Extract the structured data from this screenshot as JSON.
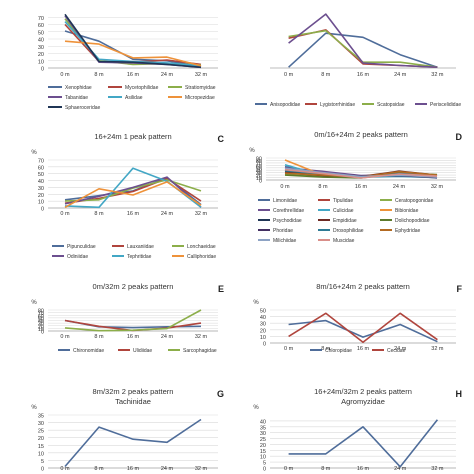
{
  "figure": {
    "gridColor": "#d9d9d9",
    "axisColor": "#a6a6a6",
    "textColor": "#333333"
  },
  "chart_data": [
    {
      "type": "line",
      "letter": "",
      "title": "",
      "ylabel": "",
      "categories": [
        "0 m",
        "8 m",
        "16 m",
        "24 m",
        "32 m"
      ],
      "ylim": [
        0,
        80
      ],
      "yticks": [
        0,
        10,
        20,
        30,
        40,
        50,
        60,
        70
      ],
      "show_yticks": true,
      "legend_rows": [
        [
          "Xenophidae",
          "Mycetophilidae",
          "Stratiomyidae"
        ],
        [
          "Tabanidae",
          "Asilidae",
          "Micropezidae"
        ],
        [
          "Sphaeroceridae"
        ]
      ],
      "series": [
        {
          "name": "Xenophidae",
          "color": "#4f6d9a",
          "values": [
            51,
            37,
            12,
            10,
            2
          ]
        },
        {
          "name": "Mycetophilidae",
          "color": "#b0453d",
          "values": [
            60,
            9,
            8,
            11,
            5
          ]
        },
        {
          "name": "Stratiomyidae",
          "color": "#8cae4a",
          "values": [
            68,
            10,
            5,
            6,
            4
          ]
        },
        {
          "name": "Tabanidae",
          "color": "#6c4f8f",
          "values": [
            72,
            8,
            7,
            5,
            1
          ]
        },
        {
          "name": "Asilidae",
          "color": "#43a7c5",
          "values": [
            64,
            12,
            9,
            7,
            3
          ]
        },
        {
          "name": "Micropezidae",
          "color": "#ee923a",
          "values": [
            37,
            33,
            14,
            15,
            3
          ]
        },
        {
          "name": "Sphaeroceridae",
          "color": "#1f3555",
          "values": [
            74,
            9,
            8,
            5,
            1
          ]
        }
      ]
    },
    {
      "type": "line",
      "letter": "",
      "title": "",
      "ylabel": "",
      "categories": [
        "0 m",
        "8 m",
        "16 m",
        "24 m",
        "32 m"
      ],
      "ylim": [
        0,
        70
      ],
      "yticks": [],
      "show_yticks": false,
      "legend_rows": [
        [
          "Anisopodidae",
          "Lygistorrhinidae",
          "Scatopsidae",
          "Periscelididae"
        ]
      ],
      "series": [
        {
          "name": "Anisopodidae",
          "color": "#4f6d9a",
          "values": [
            1,
            42,
            37,
            16,
            1
          ]
        },
        {
          "name": "Lygistorrhinidae",
          "color": "#b0453d",
          "values": [
            36,
            46,
            5,
            3,
            1
          ]
        },
        {
          "name": "Scatopsidae",
          "color": "#8cae4a",
          "values": [
            38,
            45,
            7,
            7,
            1
          ]
        },
        {
          "name": "Periscelididae",
          "color": "#6c4f8f",
          "values": [
            30,
            65,
            6,
            3,
            1
          ]
        }
      ]
    },
    {
      "type": "line",
      "letter": "C",
      "title": "16+24m 1 peak pattern",
      "ylabel": "%",
      "categories": [
        "0 m",
        "8 m",
        "16 m",
        "24 m",
        "32 m"
      ],
      "ylim": [
        0,
        70
      ],
      "yticks": [
        0,
        10,
        20,
        30,
        40,
        50,
        60,
        70
      ],
      "show_yticks": true,
      "legend_rows": [
        [
          "Pipunculidae",
          "Lauxaniidae",
          "Lonchaeidae"
        ],
        [
          "Odiniidae",
          "Tephritidae",
          "Calliphoridae"
        ]
      ],
      "series": [
        {
          "name": "Pipunculidae",
          "color": "#4f6d9a",
          "values": [
            12,
            18,
            25,
            44,
            5
          ]
        },
        {
          "name": "Lauxaniidae",
          "color": "#b0453d",
          "values": [
            7,
            14,
            24,
            43,
            10
          ]
        },
        {
          "name": "Lonchaeidae",
          "color": "#8cae4a",
          "values": [
            10,
            12,
            29,
            41,
            25
          ]
        },
        {
          "name": "Odiniidae",
          "color": "#6c4f8f",
          "values": [
            6,
            17,
            30,
            45,
            1
          ]
        },
        {
          "name": "Tephritidae",
          "color": "#43a7c5",
          "values": [
            3,
            1,
            58,
            39,
            1
          ]
        },
        {
          "name": "Calliphoridae",
          "color": "#ee923a",
          "values": [
            1,
            28,
            19,
            38,
            4
          ]
        }
      ]
    },
    {
      "type": "line",
      "letter": "D",
      "title": "0m/16+24m 2 peaks pattern",
      "ylabel": "%",
      "categories": [
        "0 m",
        "8 m",
        "16 m",
        "24 m",
        "32 m"
      ],
      "ylim": [
        0,
        90
      ],
      "yticks": [
        0,
        10,
        20,
        30,
        40,
        50,
        60,
        70,
        80,
        90
      ],
      "show_yticks": true,
      "legend_rows": [
        [
          "Limoniidae",
          "Tipulidae",
          "Ceratopogonidae"
        ],
        [
          "Corethrellidae",
          "Culicidae",
          "Bibionidae"
        ],
        [
          "Psychodidae",
          "Empididae",
          "Dolichopodidae"
        ],
        [
          "Phoridae",
          "Drosophilidae",
          "Ephydridae"
        ],
        [
          "Milichiidae",
          "Muscidae"
        ]
      ],
      "series": [
        {
          "name": "Limoniidae",
          "color": "#4f6d9a",
          "values": [
            55,
            25,
            15,
            20,
            12
          ]
        },
        {
          "name": "Tipulidae",
          "color": "#b0453d",
          "values": [
            40,
            20,
            12,
            30,
            18
          ]
        },
        {
          "name": "Ceratopogonidae",
          "color": "#8cae4a",
          "values": [
            25,
            15,
            10,
            25,
            15
          ]
        },
        {
          "name": "Corethrellidae",
          "color": "#6c4f8f",
          "values": [
            50,
            35,
            18,
            22,
            8
          ]
        },
        {
          "name": "Culicidae",
          "color": "#43a7c5",
          "values": [
            62,
            18,
            12,
            15,
            10
          ]
        },
        {
          "name": "Bibionidae",
          "color": "#ee923a",
          "values": [
            82,
            20,
            10,
            28,
            14
          ]
        },
        {
          "name": "Psychodidae",
          "color": "#1f3555",
          "values": [
            35,
            22,
            12,
            32,
            16
          ]
        },
        {
          "name": "Empididae",
          "color": "#6e2a24",
          "values": [
            30,
            18,
            14,
            36,
            20
          ]
        },
        {
          "name": "Dolichopodidae",
          "color": "#5d7a2c",
          "values": [
            20,
            12,
            8,
            28,
            22
          ]
        },
        {
          "name": "Phoridae",
          "color": "#443062",
          "values": [
            45,
            28,
            16,
            18,
            10
          ]
        },
        {
          "name": "Drosophilidae",
          "color": "#2f7a94",
          "values": [
            38,
            24,
            10,
            26,
            18
          ]
        },
        {
          "name": "Ephydridae",
          "color": "#b36a22",
          "values": [
            28,
            20,
            12,
            34,
            20
          ]
        },
        {
          "name": "Milichiidae",
          "color": "#8ea3c4",
          "values": [
            48,
            30,
            14,
            20,
            12
          ]
        },
        {
          "name": "Muscidae",
          "color": "#d98f8a",
          "values": [
            42,
            26,
            8,
            24,
            16
          ]
        }
      ]
    },
    {
      "type": "line",
      "letter": "E",
      "title": "0m/32m 2 peaks pattern",
      "ylabel": "%",
      "categories": [
        "0 m",
        "8 m",
        "16 m",
        "24 m",
        "32 m"
      ],
      "ylim": [
        0,
        80
      ],
      "yticks": [
        0,
        10,
        20,
        30,
        40,
        50,
        60,
        70,
        80
      ],
      "show_yticks": true,
      "legend_rows": [
        [
          "Chironomidae",
          "Ulidiidae",
          "Sarcophagidae"
        ]
      ],
      "series": [
        {
          "name": "Chironomidae",
          "color": "#4f6d9a",
          "values": [
            40,
            16,
            13,
            16,
            18
          ]
        },
        {
          "name": "Ulidiidae",
          "color": "#b0453d",
          "values": [
            40,
            18,
            2,
            11,
            30
          ]
        },
        {
          "name": "Sarcophagidae",
          "color": "#8cae4a",
          "values": [
            12,
            1,
            3,
            9,
            80
          ]
        }
      ]
    },
    {
      "type": "line",
      "letter": "F",
      "title": "8m/16+24m 2 peaks pattern",
      "ylabel": "%",
      "categories": [
        "0 m",
        "8 m",
        "16 m",
        "24 m",
        "32 m"
      ],
      "ylim": [
        0,
        50
      ],
      "yticks": [
        0,
        10,
        20,
        30,
        40,
        50
      ],
      "show_yticks": true,
      "legend_rows": [
        [
          "Chloropidae",
          "Cecidae"
        ]
      ],
      "series": [
        {
          "name": "Chloropidae",
          "color": "#4f6d9a",
          "values": [
            28,
            34,
            9,
            28,
            2
          ]
        },
        {
          "name": "Cecidae",
          "color": "#b0453d",
          "values": [
            10,
            45,
            1,
            45,
            5
          ]
        }
      ]
    },
    {
      "type": "line",
      "letter": "G",
      "title": "8m/32m 2 peaks pattern",
      "subtitle": "Tachinidae",
      "ylabel": "%",
      "categories": [
        "0 m",
        "8 m",
        "16 m",
        "24 m",
        "32 m"
      ],
      "ylim": [
        0,
        35
      ],
      "yticks": [
        0,
        5,
        10,
        15,
        20,
        25,
        30,
        35
      ],
      "show_yticks": true,
      "legend_rows": [],
      "series": [
        {
          "name": "Tachinidae",
          "color": "#4f6d9a",
          "values": [
            1,
            27,
            19,
            17,
            32
          ]
        }
      ]
    },
    {
      "type": "line",
      "letter": "H",
      "title": "16+24m/32m 2 peaks pattern",
      "subtitle": "Agromyzidae",
      "ylabel": "%",
      "categories": [
        "0 m",
        "8 m",
        "16 m",
        "24 m",
        "32 m"
      ],
      "ylim": [
        0,
        45
      ],
      "yticks": [
        0,
        5,
        10,
        15,
        20,
        25,
        30,
        35,
        40
      ],
      "show_yticks": true,
      "legend_rows": [],
      "series": [
        {
          "name": "Agromyzidae",
          "color": "#4f6d9a",
          "values": [
            12,
            12,
            35,
            1,
            41
          ]
        }
      ]
    }
  ]
}
